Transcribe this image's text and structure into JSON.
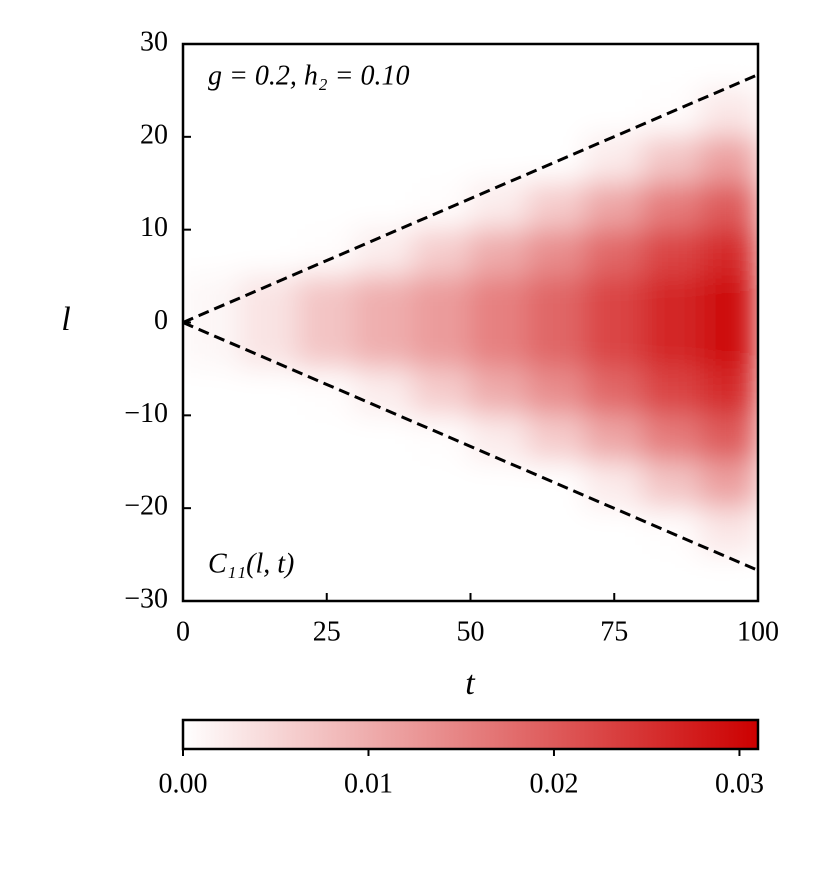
{
  "chart_data": {
    "type": "heatmap",
    "xlabel": "t",
    "ylabel": "l",
    "annotations": [
      "g = 0.2, h₂ = 0.10",
      "C₁₁(l, t)"
    ],
    "x": [
      5,
      15,
      25,
      35,
      45,
      55,
      65,
      75,
      85,
      95
    ],
    "y": [
      27.5,
      22.5,
      17.5,
      12.5,
      7.5,
      2.5,
      -2.5,
      -7.5,
      -12.5,
      -17.5,
      -22.5,
      -27.5
    ],
    "z": [
      [
        0,
        0,
        0,
        0,
        0,
        0,
        0,
        0,
        0,
        0
      ],
      [
        0,
        0,
        0,
        0,
        0,
        0,
        0,
        0,
        0.0002,
        0.003
      ],
      [
        0,
        0,
        0,
        0,
        0,
        0,
        0,
        0.0025,
        0.0071,
        0.0116
      ],
      [
        0,
        0,
        0,
        0,
        0.0002,
        0.0024,
        0.0063,
        0.011,
        0.0159,
        0.0198
      ],
      [
        0,
        0,
        0.0003,
        0.0023,
        0.0062,
        0.0102,
        0.0139,
        0.0184,
        0.0227,
        0.026
      ],
      [
        0.001,
        0.0034,
        0.0072,
        0.0099,
        0.0122,
        0.0155,
        0.0186,
        0.0226,
        0.0265,
        0.0297
      ],
      [
        0.001,
        0.0034,
        0.0072,
        0.0099,
        0.0122,
        0.0155,
        0.0186,
        0.0226,
        0.0265,
        0.0297
      ],
      [
        0,
        0,
        0.0003,
        0.0023,
        0.0062,
        0.0102,
        0.0139,
        0.0184,
        0.0227,
        0.026
      ],
      [
        0,
        0,
        0,
        0,
        0.0002,
        0.0024,
        0.0063,
        0.011,
        0.0159,
        0.0198
      ],
      [
        0,
        0,
        0,
        0,
        0,
        0,
        0,
        0.0025,
        0.0071,
        0.0116
      ],
      [
        0,
        0,
        0,
        0,
        0,
        0,
        0,
        0,
        0.0002,
        0.003
      ],
      [
        0,
        0,
        0,
        0,
        0,
        0,
        0,
        0,
        0,
        0
      ]
    ],
    "cmap": [
      "#ffffff",
      "#cc0000"
    ],
    "xlim": [
      0,
      100
    ],
    "ylim": [
      -30,
      30
    ],
    "xticks": [
      0,
      25,
      50,
      75,
      100
    ],
    "yticks": [
      30,
      20,
      10,
      0,
      {
        "value": -10,
        "label": "−10"
      },
      {
        "value": -20,
        "label": "−20"
      },
      {
        "value": -30,
        "label": "−30"
      }
    ],
    "lines": [
      {
        "x": [
          0,
          100
        ],
        "y": [
          0,
          26.7
        ],
        "color": "#000000",
        "style": "dashed"
      },
      {
        "x": [
          0,
          100
        ],
        "y": [
          0,
          -26.7
        ],
        "color": "#000000",
        "style": "dashed"
      }
    ],
    "colorbar": {
      "lim": [
        0,
        0.031
      ],
      "ticks": [
        {
          "value": 0,
          "label": "0.00"
        },
        0.01,
        0.02,
        0.03
      ]
    }
  }
}
